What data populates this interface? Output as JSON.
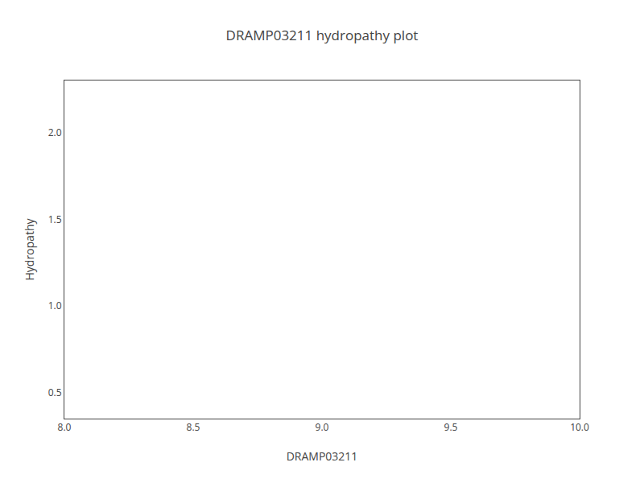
{
  "chart_data": {
    "type": "line",
    "title": "DRAMP03211 hydropathy plot",
    "xlabel": "DRAMP03211",
    "ylabel": "Hydropathy",
    "series": [],
    "xlim": [
      8.0,
      10.0
    ],
    "ylim": [
      0.35,
      2.3
    ],
    "xticks": [
      {
        "value": 8.0,
        "label": "8.0"
      },
      8.5,
      {
        "value": 9.0,
        "label": "9.0"
      },
      9.5,
      {
        "value": 10.0,
        "label": "10.0"
      }
    ],
    "yticks": [
      0.5,
      {
        "value": 1.0,
        "label": "1.0"
      },
      1.5,
      {
        "value": 2.0,
        "label": "2.0"
      }
    ],
    "grid": false
  }
}
